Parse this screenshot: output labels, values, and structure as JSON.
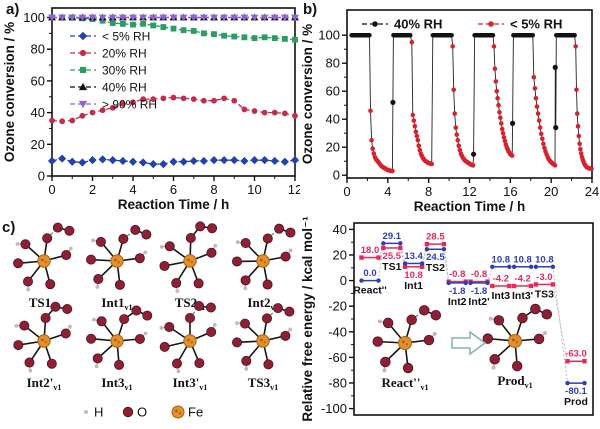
{
  "panel_a": {
    "label": "a)"
  },
  "panel_b": {
    "label": "b)"
  },
  "panel_c": {
    "label": "c)",
    "molecules": [
      {
        "name": "TS1",
        "sub": "v1"
      },
      {
        "name": "Int1",
        "sub": "v1"
      },
      {
        "name": "TS2",
        "sub": "v1"
      },
      {
        "name": "Int2",
        "sub": "v1"
      },
      {
        "name": "Int2'",
        "sub": "v1"
      },
      {
        "name": "Int3",
        "sub": "v1"
      },
      {
        "name": "Int3'",
        "sub": "v1"
      },
      {
        "name": "TS3",
        "sub": "v1"
      }
    ],
    "legend": [
      {
        "label": "H",
        "color": "#c9b6b6"
      },
      {
        "label": "O",
        "color": "#8e2036"
      },
      {
        "label": "Fe",
        "color": "#e2902e"
      }
    ],
    "atom_colors": {
      "H": "#c9b6b6",
      "O": "#8e2036",
      "O_edge": "#53101f",
      "Fe": "#e2902e",
      "Fe_edge": "#a96410",
      "bond": "#151515",
      "dash": "#3f9487"
    }
  },
  "chart_data": [
    {
      "id": "panel_a",
      "type": "line",
      "xlabel": "Reaction Time / h",
      "ylabel": "Ozone conversion / %",
      "xlim": [
        0,
        12
      ],
      "ylim": [
        0,
        106
      ],
      "xticks": [
        0,
        2,
        4,
        6,
        8,
        10,
        12
      ],
      "yticks": [
        0,
        20,
        40,
        60,
        80,
        100
      ],
      "legend_position": "upper-left",
      "x": [
        0,
        0.5,
        1,
        1.5,
        2,
        2.5,
        3,
        3.5,
        4,
        4.5,
        5,
        5.5,
        6,
        6.5,
        7,
        7.5,
        8,
        8.5,
        9,
        9.5,
        10,
        10.5,
        11,
        11.5,
        12
      ],
      "series": [
        {
          "name": "< 5% RH",
          "marker": "diamond",
          "color": "#2143b0",
          "values": [
            9.5,
            11,
            9,
            8.5,
            10,
            10.5,
            10,
            9.5,
            9,
            8.5,
            7.5,
            7.5,
            9,
            9,
            9.5,
            9.5,
            10,
            10,
            10,
            9.5,
            10,
            10,
            9.5,
            9,
            10
          ]
        },
        {
          "name": "20% RH",
          "marker": "circle",
          "color": "#c62b4a",
          "values": [
            35,
            34.5,
            35,
            38,
            40,
            41.5,
            43,
            45.5,
            46.5,
            48.5,
            48.5,
            49,
            49.5,
            49,
            48.5,
            47.5,
            47.5,
            49,
            47.5,
            42,
            41,
            40,
            40,
            39.5,
            38
          ]
        },
        {
          "name": "30% RH",
          "marker": "square",
          "color": "#2a9d61",
          "values": [
            100,
            100,
            100,
            99.5,
            99,
            98,
            96.5,
            96,
            95.5,
            96,
            95,
            94,
            93,
            92,
            91.5,
            90,
            89.5,
            88.5,
            88,
            87.5,
            87,
            87.5,
            87,
            86.5,
            86
          ]
        },
        {
          "name": "40% RH",
          "marker": "triangle-up",
          "color": "#111111",
          "values": [
            100,
            100,
            100,
            100,
            100,
            100,
            100,
            100,
            100,
            100,
            100,
            100,
            100,
            100,
            100,
            100,
            100,
            100,
            100,
            100,
            100,
            100,
            100,
            100,
            100
          ]
        },
        {
          "name": "> 90% RH",
          "marker": "triangle-down",
          "color": "#8f62d6",
          "values": [
            100,
            100,
            100,
            100,
            100,
            100,
            100,
            100,
            100,
            100,
            100,
            100,
            100,
            100,
            100,
            100,
            100,
            100,
            100,
            100,
            100,
            100,
            100,
            100,
            100
          ]
        }
      ]
    },
    {
      "id": "panel_b",
      "type": "scatter-line",
      "xlabel": "Reaction Time / h",
      "ylabel": "Ozone conversion / %",
      "xlim": [
        0,
        24
      ],
      "ylim": [
        -2,
        118
      ],
      "xticks": [
        0,
        4,
        8,
        12,
        16,
        20,
        24
      ],
      "yticks": [
        0,
        20,
        40,
        60,
        80,
        100
      ],
      "legend_position": "top-inside",
      "series": [
        {
          "name": "40% RH",
          "color": "#111111",
          "segments_at_100": [
            [
              0.45,
              2.2
            ],
            [
              4.55,
              6.2
            ],
            [
              8.4,
              10.25
            ],
            [
              12.5,
              14.3
            ],
            [
              16.3,
              18.2
            ],
            [
              20.5,
              22.3
            ]
          ],
          "extra_points": [
            [
              4.5,
              52
            ],
            [
              12.4,
              15
            ],
            [
              16.22,
              37
            ],
            [
              20.4,
              77
            ],
            [
              20.45,
              34
            ]
          ]
        },
        {
          "name": "< 5% RH",
          "color": "#d4232e",
          "cycles": [
            {
              "x0": 2.3,
              "x1": 4.45,
              "y": [
                46,
                25,
                19,
                15.5,
                13,
                11.5,
                10.5,
                9.5,
                8.5,
                7.5,
                6.5,
                6,
                5.5,
                5,
                4.5,
                4,
                3.8,
                3.5,
                3.2,
                3,
                3
              ]
            },
            {
              "x0": 6.35,
              "x1": 8.3,
              "y": [
                95,
                43,
                39,
                35,
                31,
                28,
                25,
                21,
                18,
                15.5,
                14,
                12.5,
                11.5,
                10.5,
                10,
                9.5,
                9,
                8.7,
                8.4,
                8.2,
                8
              ]
            },
            {
              "x0": 10.35,
              "x1": 12.35,
              "y": [
                92,
                61,
                44,
                34,
                29,
                25,
                21,
                18,
                15.5,
                14,
                12.5,
                11.5,
                10.5,
                10,
                9.5,
                9,
                8.5,
                8,
                7.6,
                7.3,
                7
              ]
            },
            {
              "x0": 14.4,
              "x1": 16.18,
              "y": [
                92,
                76,
                67,
                60,
                55,
                50,
                45,
                41,
                37,
                33,
                30,
                27,
                24.5,
                22,
                20,
                18.5,
                17,
                16,
                15,
                14.5,
                14
              ]
            },
            {
              "x0": 18.3,
              "x1": 20.38,
              "y": [
                70,
                62,
                55,
                49,
                44,
                39,
                34,
                29.5,
                26,
                22.5,
                19.5,
                17,
                15,
                13,
                11.5,
                10.5,
                9.5,
                8.8,
                8.2,
                7.6,
                7
              ]
            },
            {
              "x0": 22.4,
              "x1": 23.95,
              "y": [
                92,
                61,
                44,
                35,
                28,
                22.5,
                18.5,
                15.5,
                13,
                11,
                9.5,
                8.2,
                7.2,
                6.4,
                5.8,
                5.4,
                5.1,
                4.9,
                4.8,
                4.7,
                4.6
              ]
            }
          ]
        }
      ]
    },
    {
      "id": "energy_diagram",
      "type": "energy-levels",
      "ylabel": "Relative free energy / kcal mol⁻¹",
      "ylim": [
        -105,
        45
      ],
      "yticks": [
        40,
        20,
        0,
        -20,
        -40,
        -60,
        -80,
        -100
      ],
      "series_colors": {
        "red": "#e8285a",
        "blue": "#2f3db8"
      },
      "connector_color": "#bdbdbd",
      "states": [
        {
          "name": "React''",
          "red": 18.0,
          "blue": 0.0
        },
        {
          "name": "TS1",
          "red": 25.5,
          "blue": 29.1
        },
        {
          "name": "Int1",
          "red": 10.8,
          "blue": 13.4
        },
        {
          "name": "TS2",
          "red": 28.5,
          "blue": 24.5
        },
        {
          "name": "Int2",
          "red": -0.8,
          "blue": -1.8
        },
        {
          "name": "Int2'",
          "red": -0.8,
          "blue": -1.8
        },
        {
          "name": "Int3",
          "red": -4.2,
          "blue": 10.8
        },
        {
          "name": "Int3'",
          "red": -4.2,
          "blue": 10.8
        },
        {
          "name": "TS3",
          "red": -3.0,
          "blue": 10.8
        },
        {
          "name": "Prod",
          "red": -63.0,
          "blue": -80.1
        }
      ],
      "inset": {
        "reactant": "React''",
        "reactant_sub": "v1",
        "product": "Prod",
        "product_sub": "v1",
        "arrow_color": "#7fb8a4"
      }
    }
  ]
}
